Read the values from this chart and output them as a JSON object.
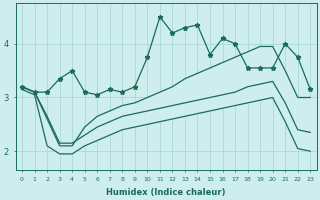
{
  "xlabel": "Humidex (Indice chaleur)",
  "background_color": "#ceeeed",
  "line_color": "#1a6b5a",
  "grid_color": "#aad8d8",
  "xlim": [
    -0.5,
    23.5
  ],
  "ylim": [
    1.65,
    4.75
  ],
  "yticks": [
    2,
    3,
    4
  ],
  "xticks": [
    0,
    1,
    2,
    3,
    4,
    5,
    6,
    7,
    8,
    9,
    10,
    11,
    12,
    13,
    14,
    15,
    16,
    17,
    18,
    19,
    20,
    21,
    22,
    23
  ],
  "main_line": [
    3.2,
    3.1,
    3.1,
    3.35,
    3.5,
    3.1,
    3.05,
    3.15,
    3.1,
    3.2,
    3.75,
    4.5,
    4.2,
    4.3,
    4.35,
    3.8,
    4.1,
    4.0,
    3.55,
    3.55,
    3.55,
    4.0,
    3.75,
    3.15
  ],
  "upper_line1": [
    3.2,
    3.1,
    2.6,
    2.1,
    2.1,
    2.45,
    2.65,
    2.75,
    2.85,
    2.9,
    3.0,
    3.1,
    3.2,
    3.35,
    3.45,
    3.55,
    3.65,
    3.75,
    3.85,
    3.95,
    3.95,
    3.5,
    3.0,
    3.0
  ],
  "upper_line2": [
    3.2,
    3.1,
    2.65,
    2.15,
    2.15,
    2.3,
    2.45,
    2.55,
    2.65,
    2.7,
    2.75,
    2.8,
    2.85,
    2.9,
    2.95,
    3.0,
    3.05,
    3.1,
    3.2,
    3.25,
    3.3,
    2.9,
    2.4,
    2.35
  ],
  "lower_line": [
    3.15,
    3.05,
    2.1,
    1.95,
    1.95,
    2.1,
    2.2,
    2.3,
    2.4,
    2.45,
    2.5,
    2.55,
    2.6,
    2.65,
    2.7,
    2.75,
    2.8,
    2.85,
    2.9,
    2.95,
    3.0,
    2.55,
    2.05,
    2.0
  ]
}
